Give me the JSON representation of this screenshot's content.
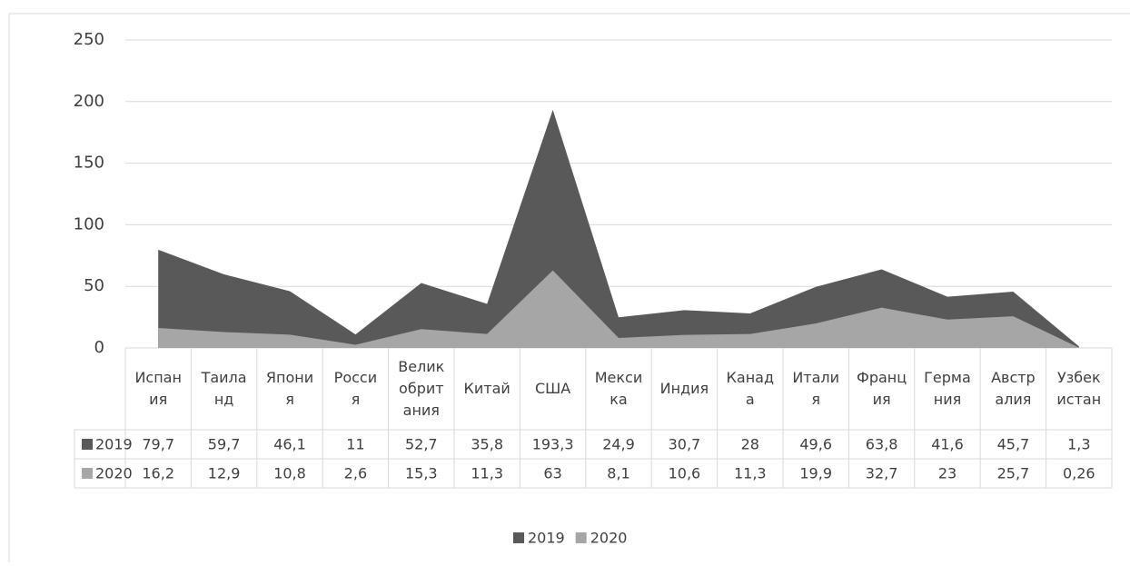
{
  "chart_data": {
    "type": "area",
    "categories": [
      "Испания",
      "Таиланд",
      "Япония",
      "Россия",
      "Великобритания",
      "Китай",
      "США",
      "Мексика",
      "Индия",
      "Канада",
      "Италия",
      "Франция",
      "Германия",
      "Австралия",
      "Узбекистан"
    ],
    "series": [
      {
        "name": "2019",
        "color": "#595959",
        "values": [
          79.7,
          59.7,
          46.1,
          11,
          52.7,
          35.8,
          193.3,
          24.9,
          30.7,
          28,
          49.6,
          63.8,
          41.6,
          45.7,
          1.3
        ],
        "value_labels": [
          "79,7",
          "59,7",
          "46,1",
          "11",
          "52,7",
          "35,8",
          "193,3",
          "24,9",
          "30,7",
          "28",
          "49,6",
          "63,8",
          "41,6",
          "45,7",
          "1,3"
        ]
      },
      {
        "name": "2020",
        "color": "#a6a6a6",
        "values": [
          16.2,
          12.9,
          10.8,
          2.6,
          15.3,
          11.3,
          63,
          8.1,
          10.6,
          11.3,
          19.9,
          32.7,
          23,
          25.7,
          0.26
        ],
        "value_labels": [
          "16,2",
          "12,9",
          "10,8",
          "2,6",
          "15,3",
          "11,3",
          "63",
          "8,1",
          "10,6",
          "11,3",
          "19,9",
          "32,7",
          "23",
          "25,7",
          "0,26"
        ]
      }
    ],
    "ylim": [
      0,
      250
    ],
    "yticks": [
      0,
      50,
      100,
      150,
      200,
      250
    ],
    "grid": true,
    "legend": "bottom"
  }
}
